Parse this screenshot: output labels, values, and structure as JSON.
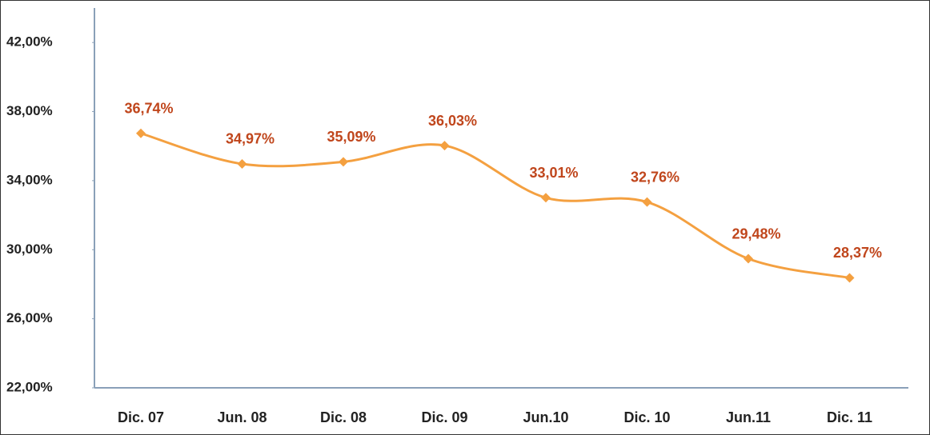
{
  "chart_data": {
    "type": "line",
    "categories": [
      "Dic. 07",
      "Jun. 08",
      "Dic. 08",
      "Dic. 09",
      "Jun.10",
      "Dic. 10",
      "Jun.11",
      "Dic. 11"
    ],
    "values": [
      36.74,
      34.97,
      35.09,
      36.03,
      33.01,
      32.76,
      29.48,
      28.37
    ],
    "value_labels": [
      "36,74%",
      "34,97%",
      "35,09%",
      "36,03%",
      "33,01%",
      "32,76%",
      "29,48%",
      "28,37%"
    ],
    "color": "#f4a040",
    "label_color": "#c0461c",
    "ylim": [
      22,
      44
    ],
    "yticks": [
      {
        "value": 22,
        "label": "22,00%"
      },
      {
        "value": 26,
        "label": "26,00%"
      },
      {
        "value": 30,
        "label": "30,00%"
      },
      {
        "value": 34,
        "label": "34,00%"
      },
      {
        "value": 38,
        "label": "38,00%"
      },
      {
        "value": 42,
        "label": "42,00%"
      }
    ],
    "smooth": true
  }
}
